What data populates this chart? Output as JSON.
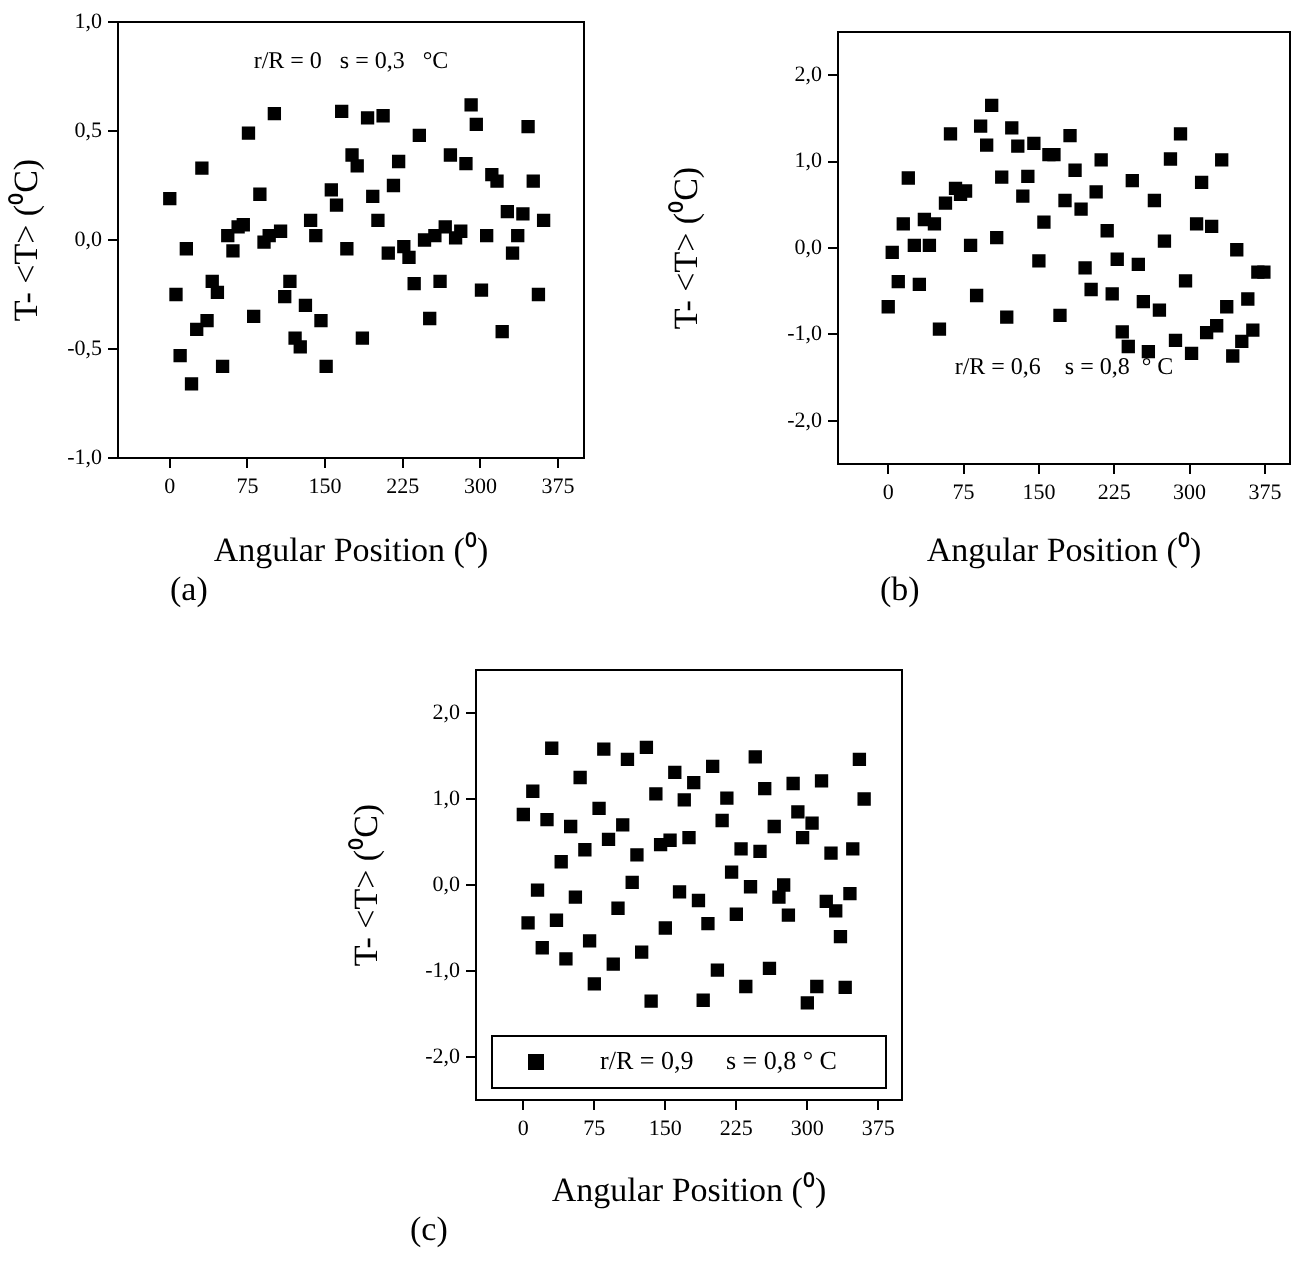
{
  "chart_data": [
    {
      "type": "scatter",
      "xlabel": "Angular Position (⁰)",
      "ylabel": "T- <T> (⁰C)",
      "annotations": [
        "r/R = 0   s = 0,3   °C",
        "(a)"
      ],
      "xlim": [
        -50,
        400
      ],
      "xticks": [
        0,
        75,
        150,
        225,
        300,
        375
      ],
      "ylim": [
        -1,
        1
      ],
      "yticks": [
        {
          "value": -1,
          "label": "-1,0"
        },
        {
          "value": -0.5,
          "label": "-0,5"
        },
        {
          "value": 0,
          "label": "0,0"
        },
        {
          "value": 0.5,
          "label": "0,5"
        },
        {
          "value": 1,
          "label": "1,0"
        }
      ],
      "marker": "square",
      "legend": false,
      "series": [
        {
          "color": "#000000",
          "x": [
            0,
            6,
            10,
            16,
            21,
            26,
            31,
            36,
            41,
            46,
            51,
            56,
            61,
            66,
            71,
            76,
            81,
            87,
            91,
            96,
            101,
            107,
            111,
            116,
            121,
            126,
            131,
            136,
            141,
            146,
            151,
            156,
            161,
            166,
            171,
            176,
            181,
            186,
            191,
            196,
            201,
            206,
            211,
            216,
            221,
            226,
            231,
            236,
            241,
            246,
            251,
            256,
            261,
            266,
            271,
            276,
            281,
            286,
            291,
            296,
            301,
            306,
            311,
            316,
            321,
            326,
            331,
            336,
            341,
            346,
            351,
            356,
            361
          ],
          "values": [
            0.19,
            -0.25,
            -0.53,
            -0.04,
            -0.66,
            -0.41,
            0.33,
            -0.37,
            -0.19,
            -0.24,
            -0.58,
            0.02,
            -0.05,
            0.06,
            0.07,
            0.49,
            -0.35,
            0.21,
            -0.01,
            0.02,
            0.58,
            0.04,
            -0.26,
            -0.19,
            -0.45,
            -0.49,
            -0.3,
            0.09,
            0.02,
            -0.37,
            -0.58,
            0.23,
            0.16,
            0.59,
            -0.04,
            0.39,
            0.34,
            -0.45,
            0.56,
            0.2,
            0.09,
            0.57,
            -0.06,
            0.25,
            0.36,
            -0.03,
            -0.08,
            -0.2,
            0.48,
            0,
            -0.36,
            0.02,
            -0.19,
            0.06,
            0.39,
            0.01,
            0.04,
            0.35,
            0.62,
            0.53,
            -0.23,
            0.02,
            0.3,
            0.27,
            -0.42,
            0.13,
            -0.06,
            0.02,
            0.12,
            0.52,
            0.27,
            -0.25,
            0.09
          ]
        }
      ]
    },
    {
      "type": "scatter",
      "xlabel": "Angular Position (⁰)",
      "ylabel": "T- <T> (⁰C)",
      "annotations": [
        "r/R = 0,6    s = 0,8  ° C",
        "(b)"
      ],
      "xlim": [
        -50,
        400
      ],
      "xticks": [
        0,
        75,
        150,
        225,
        300,
        375
      ],
      "ylim": [
        -2.5,
        2.5
      ],
      "yticks": [
        {
          "value": -2,
          "label": "-2,0"
        },
        {
          "value": -1,
          "label": "-1,0"
        },
        {
          "value": 0,
          "label": "0,0"
        },
        {
          "value": 1,
          "label": "1,0"
        },
        {
          "value": 2,
          "label": "2,0"
        }
      ],
      "marker": "square",
      "legend": false,
      "series": [
        {
          "color": "#000000",
          "x": [
            0,
            4,
            10,
            15,
            20,
            26,
            31,
            36,
            41,
            46,
            51,
            57,
            62,
            67,
            72,
            77,
            82,
            88,
            92,
            98,
            103,
            108,
            113,
            118,
            123,
            129,
            134,
            139,
            145,
            150,
            155,
            160,
            165,
            171,
            176,
            181,
            186,
            192,
            196,
            202,
            207,
            212,
            218,
            223,
            228,
            233,
            239,
            243,
            249,
            254,
            259,
            265,
            270,
            275,
            281,
            286,
            291,
            296,
            302,
            307,
            312,
            317,
            322,
            327,
            332,
            337,
            343,
            347,
            352,
            358,
            363,
            368,
            374
          ],
          "values": [
            -0.68,
            -0.05,
            -0.39,
            0.28,
            0.81,
            0.03,
            -0.42,
            0.33,
            0.03,
            0.28,
            -0.94,
            0.52,
            1.32,
            0.69,
            0.62,
            0.66,
            0.03,
            -0.55,
            1.41,
            1.19,
            1.65,
            0.12,
            0.82,
            -0.8,
            1.39,
            1.18,
            0.6,
            0.83,
            1.21,
            -0.15,
            0.3,
            1.08,
            1.08,
            -0.78,
            0.55,
            1.3,
            0.9,
            0.45,
            -0.23,
            -0.48,
            0.65,
            1.02,
            0.2,
            -0.53,
            -0.13,
            -0.97,
            -1.14,
            0.78,
            -0.19,
            -0.62,
            -1.2,
            0.55,
            -0.72,
            0.08,
            1.03,
            -1.07,
            1.32,
            -0.38,
            -1.22,
            0.28,
            0.76,
            -0.98,
            0.25,
            -0.9,
            1.02,
            -0.68,
            -1.25,
            -0.02,
            -1.08,
            -0.59,
            -0.95,
            -0.28,
            -0.28
          ]
        }
      ]
    },
    {
      "type": "scatter",
      "xlabel": "Angular Position (⁰)",
      "ylabel": "T- <T> (⁰C)",
      "annotations": [
        "(c)"
      ],
      "xlim": [
        -50,
        400
      ],
      "xticks": [
        0,
        75,
        150,
        225,
        300,
        375
      ],
      "ylim": [
        -2.5,
        2.5
      ],
      "yticks": [
        {
          "value": -2,
          "label": "-2,0"
        },
        {
          "value": -1,
          "label": "-1,0"
        },
        {
          "value": 0,
          "label": "0,0"
        },
        {
          "value": 1,
          "label": "1,0"
        },
        {
          "value": 2,
          "label": "2,0"
        }
      ],
      "marker": "square",
      "legend": "bottom",
      "series": [
        {
          "name": "r/R = 0,9     s = 0,8 ° C",
          "color": "#000000",
          "x": [
            0,
            5,
            10,
            15,
            20,
            25,
            30,
            35,
            40,
            45,
            50,
            55,
            60,
            65,
            70,
            75,
            80,
            85,
            90,
            95,
            100,
            105,
            110,
            115,
            120,
            125,
            130,
            135,
            140,
            145,
            150,
            155,
            160,
            165,
            170,
            175,
            180,
            185,
            190,
            195,
            200,
            205,
            210,
            215,
            220,
            225,
            230,
            235,
            240,
            245,
            250,
            255,
            260,
            265,
            270,
            275,
            280,
            285,
            290,
            295,
            300,
            305,
            310,
            315,
            320,
            325,
            330,
            335,
            340,
            345,
            348,
            355,
            360
          ],
          "values": [
            0.82,
            -0.44,
            1.09,
            -0.06,
            -0.73,
            0.76,
            1.59,
            -0.41,
            0.27,
            -0.86,
            0.68,
            -0.14,
            1.25,
            0.41,
            -0.65,
            -1.15,
            0.89,
            1.58,
            0.53,
            -0.92,
            -0.27,
            0.7,
            1.46,
            0.03,
            0.35,
            -0.78,
            1.6,
            -1.35,
            1.06,
            0.47,
            -0.5,
            0.52,
            1.31,
            -0.08,
            0.99,
            0.55,
            1.19,
            -0.18,
            -1.34,
            -0.45,
            1.38,
            -0.99,
            0.75,
            1.01,
            0.15,
            -0.34,
            0.42,
            -1.18,
            -0.02,
            1.49,
            0.39,
            1.12,
            -0.97,
            0.68,
            -0.14,
            0,
            -0.35,
            1.18,
            0.85,
            0.55,
            -1.37,
            0.72,
            -1.18,
            1.21,
            -0.19,
            0.37,
            -0.3,
            -0.6,
            -1.19,
            -0.1,
            0.42,
            1.46,
            1
          ]
        }
      ]
    }
  ]
}
